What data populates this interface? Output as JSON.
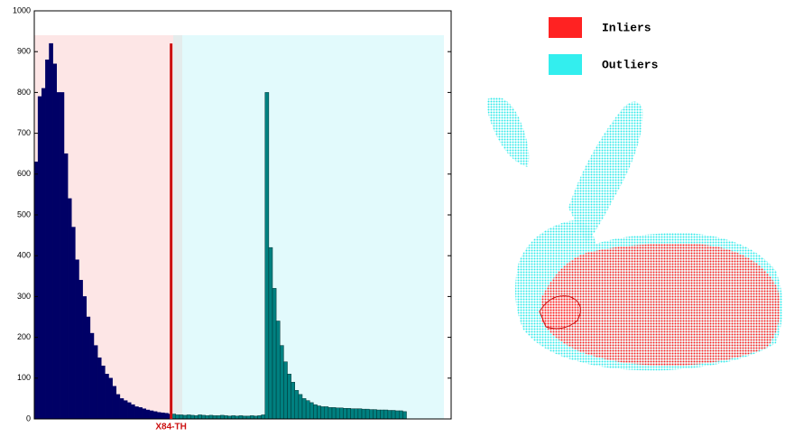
{
  "chart_data": {
    "type": "bar",
    "categories": [
      null,
      null,
      null,
      null,
      null,
      null,
      null,
      null,
      null,
      null,
      null,
      null,
      null,
      null,
      null,
      null,
      null,
      null,
      null,
      null,
      null,
      null,
      null,
      null,
      null,
      null,
      null,
      null,
      null,
      null,
      null,
      null,
      null,
      null,
      null,
      null,
      null,
      null,
      null,
      null,
      null,
      null,
      null,
      null,
      null,
      null,
      null,
      null,
      null,
      null,
      null,
      null,
      null,
      null,
      null,
      null,
      null,
      null,
      null,
      null,
      null,
      null,
      null,
      null,
      null,
      null,
      null,
      null,
      null,
      null,
      null,
      null,
      null,
      null,
      null,
      null,
      null,
      null,
      null,
      null,
      null,
      null,
      null,
      null,
      null,
      null,
      null,
      null,
      null,
      null,
      null,
      null,
      null,
      null,
      null,
      null,
      null,
      null,
      null,
      null,
      null,
      null,
      null,
      null,
      null,
      null,
      null,
      null,
      null,
      null,
      null,
      null
    ],
    "series": [
      {
        "color": "#000066",
        "values": [
          630,
          790,
          810,
          880,
          920,
          870,
          800,
          800,
          650,
          540,
          470,
          390,
          340,
          300,
          250,
          210,
          180,
          150,
          130,
          110,
          100,
          80,
          60,
          50,
          45,
          40,
          35,
          30,
          28,
          25,
          22,
          20,
          18,
          16,
          15,
          14,
          12,
          null,
          null,
          null,
          null,
          null,
          null,
          null,
          null,
          null,
          null,
          null,
          null,
          null,
          null,
          null,
          null,
          null,
          null,
          null,
          null,
          null,
          null,
          null,
          null,
          null,
          null,
          null,
          null,
          null,
          null,
          null,
          null,
          null,
          null,
          null,
          null,
          null,
          null,
          null,
          null,
          null,
          null,
          null,
          null,
          null,
          null,
          null,
          null,
          null,
          null,
          null,
          null,
          null,
          null,
          null,
          null,
          null,
          null,
          null,
          null,
          null,
          null,
          null,
          null,
          null,
          null,
          null,
          null,
          null,
          null,
          null,
          null,
          null,
          null,
          null
        ]
      },
      {
        "color": "#008080",
        "values": [
          null,
          null,
          null,
          null,
          null,
          null,
          null,
          null,
          null,
          null,
          null,
          null,
          null,
          null,
          null,
          null,
          null,
          null,
          null,
          null,
          null,
          null,
          null,
          null,
          null,
          null,
          null,
          null,
          null,
          null,
          null,
          null,
          null,
          null,
          null,
          null,
          null,
          12,
          10,
          10,
          9,
          10,
          9,
          8,
          10,
          9,
          8,
          9,
          8,
          8,
          9,
          8,
          7,
          8,
          7,
          8,
          7,
          7,
          8,
          7,
          8,
          10,
          800,
          420,
          320,
          240,
          180,
          140,
          110,
          90,
          70,
          60,
          50,
          45,
          40,
          35,
          32,
          30,
          30,
          28,
          28,
          27,
          27,
          26,
          26,
          25,
          25,
          25,
          24,
          24,
          23,
          23,
          22,
          22,
          22,
          21,
          21,
          20,
          20,
          18,
          null,
          null,
          null,
          null,
          null,
          null,
          null,
          null,
          null,
          null,
          null,
          null
        ]
      }
    ],
    "threshold": {
      "label": "X84-TH",
      "value": 920,
      "color": "#cc1111"
    },
    "ylim": [
      0,
      1000
    ],
    "yticks": [
      0,
      100,
      200,
      300,
      400,
      500,
      600,
      700,
      800,
      900,
      1000
    ]
  },
  "legend": [
    {
      "label": "Inliers",
      "color": "#ff2222"
    },
    {
      "label": "Outliers",
      "color": "#33eeee"
    }
  ]
}
